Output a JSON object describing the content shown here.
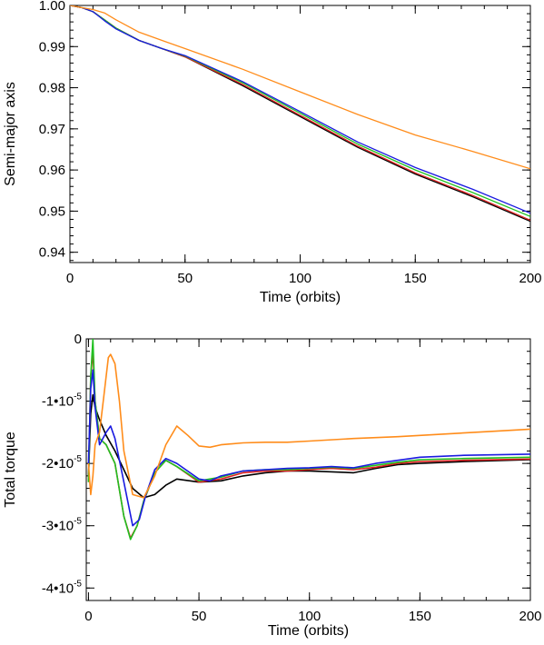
{
  "chart_data": [
    {
      "type": "line",
      "xlabel": "Time (orbits)",
      "ylabel": "Semi-major axis",
      "xlim": [
        0,
        200
      ],
      "ylim": [
        0.9375,
        1.0
      ],
      "x_ticks": [
        0,
        50,
        100,
        150,
        200
      ],
      "x_tick_labels": [
        "0",
        "50",
        "100",
        "150",
        "200"
      ],
      "y_ticks": [
        0.94,
        0.95,
        0.96,
        0.97,
        0.98,
        0.99,
        1.0
      ],
      "y_tick_labels": [
        "0.94",
        "0.95",
        "0.96",
        "0.97",
        "0.98",
        "0.99",
        "1.00"
      ],
      "grid": false,
      "series": [
        {
          "color": "#000000",
          "x": [
            0,
            5,
            10,
            15,
            20,
            30,
            40,
            50,
            75,
            100,
            125,
            150,
            175,
            200
          ],
          "y": [
            1.0,
            0.9995,
            0.9985,
            0.9965,
            0.9945,
            0.9915,
            0.9895,
            0.9875,
            0.9805,
            0.973,
            0.9655,
            0.959,
            0.9535,
            0.9475
          ]
        },
        {
          "color": "#e02020",
          "x": [
            0,
            5,
            10,
            15,
            20,
            30,
            40,
            50,
            75,
            100,
            125,
            150,
            175,
            200
          ],
          "y": [
            1.0,
            0.9995,
            0.9985,
            0.9965,
            0.9945,
            0.9915,
            0.9895,
            0.9875,
            0.9808,
            0.9733,
            0.9658,
            0.9593,
            0.9538,
            0.9478
          ]
        },
        {
          "color": "#20c020",
          "x": [
            0,
            5,
            10,
            15,
            20,
            30,
            40,
            50,
            75,
            100,
            125,
            150,
            175,
            200
          ],
          "y": [
            1.0,
            0.9995,
            0.9985,
            0.9965,
            0.9945,
            0.9915,
            0.9895,
            0.9877,
            0.9812,
            0.9738,
            0.9663,
            0.96,
            0.9545,
            0.9487
          ]
        },
        {
          "color": "#1a1ae0",
          "x": [
            0,
            5,
            10,
            15,
            20,
            30,
            40,
            50,
            75,
            100,
            125,
            150,
            175,
            200
          ],
          "y": [
            1.0,
            0.9995,
            0.9985,
            0.9963,
            0.9943,
            0.9915,
            0.9895,
            0.9878,
            0.9815,
            0.9742,
            0.9668,
            0.9606,
            0.9553,
            0.9495
          ]
        },
        {
          "color": "#ff8c1a",
          "x": [
            0,
            5,
            10,
            15,
            20,
            30,
            40,
            50,
            75,
            100,
            125,
            150,
            175,
            200
          ],
          "y": [
            1.0,
            0.9995,
            0.999,
            0.9982,
            0.9965,
            0.9935,
            0.9915,
            0.9895,
            0.9845,
            0.979,
            0.9735,
            0.9685,
            0.9645,
            0.9603
          ]
        }
      ]
    },
    {
      "type": "line",
      "xlabel": "Time (orbits)",
      "ylabel": "Total torque",
      "xlim": [
        -1,
        200
      ],
      "ylim": [
        -4.2e-05,
        0.0
      ],
      "x_ticks": [
        0,
        50,
        100,
        150,
        200
      ],
      "x_tick_labels": [
        "0",
        "50",
        "100",
        "150",
        "200"
      ],
      "y_ticks": [
        0.0,
        -1e-05,
        -2e-05,
        -3e-05,
        -4e-05
      ],
      "y_tick_labels": [
        {
          "mantissa": "0",
          "exponent": ""
        },
        {
          "mantissa": "-1•10",
          "exponent": "-5"
        },
        {
          "mantissa": "-2•10",
          "exponent": "-5"
        },
        {
          "mantissa": "-3•10",
          "exponent": "-5"
        },
        {
          "mantissa": "-4•10",
          "exponent": "-5"
        }
      ],
      "grid": false,
      "series": [
        {
          "color": "#000000",
          "x": [
            0,
            1,
            2,
            3,
            5,
            8,
            12,
            16,
            20,
            25,
            30,
            35,
            40,
            50,
            60,
            70,
            80,
            90,
            100,
            120,
            130,
            140,
            150,
            170,
            200
          ],
          "y": [
            -2.2e-05,
            -1.2e-05,
            -9e-06,
            -1.1e-05,
            -1.3e-05,
            -1.55e-05,
            -1.8e-05,
            -2.1e-05,
            -2.4e-05,
            -2.55e-05,
            -2.5e-05,
            -2.35e-05,
            -2.25e-05,
            -2.3e-05,
            -2.28e-05,
            -2.2e-05,
            -2.15e-05,
            -2.12e-05,
            -2.12e-05,
            -2.15e-05,
            -2.08e-05,
            -2.02e-05,
            -2e-05,
            -1.97e-05,
            -1.94e-05
          ]
        },
        {
          "color": "#e02020",
          "x": [
            0,
            1,
            2,
            3,
            5,
            8,
            12,
            16,
            19,
            22,
            25,
            30,
            35,
            40,
            50,
            60,
            70,
            80,
            90,
            100,
            110,
            120,
            130,
            140,
            150,
            170,
            200
          ],
          "y": [
            -2.3e-05,
            -6e-06,
            -2e-06,
            -1e-05,
            -1.6e-05,
            -1.7e-05,
            -2e-05,
            -2.85e-05,
            -3.2e-05,
            -3e-05,
            -2.6e-05,
            -2.15e-05,
            -1.95e-05,
            -2.05e-05,
            -2.3e-05,
            -2.25e-05,
            -2.15e-05,
            -2.12e-05,
            -2.12e-05,
            -2.1e-05,
            -2.08e-05,
            -2.1e-05,
            -2.06e-05,
            -2e-05,
            -1.97e-05,
            -1.95e-05,
            -1.93e-05
          ]
        },
        {
          "color": "#20c020",
          "x": [
            0,
            1,
            2,
            3,
            5,
            8,
            12,
            16,
            19,
            22,
            25,
            30,
            35,
            40,
            50,
            60,
            70,
            80,
            90,
            100,
            110,
            120,
            130,
            140,
            150,
            170,
            200
          ],
          "y": [
            -2.3e-05,
            -6e-06,
            0.0,
            -1e-05,
            -1.6e-05,
            -1.7e-05,
            -2e-05,
            -2.85e-05,
            -3.22e-05,
            -3e-05,
            -2.6e-05,
            -2.15e-05,
            -1.95e-05,
            -2.05e-05,
            -2.28e-05,
            -2.22e-05,
            -2.12e-05,
            -2.1e-05,
            -2.1e-05,
            -2.08e-05,
            -2.06e-05,
            -2.08e-05,
            -2.03e-05,
            -1.98e-05,
            -1.94e-05,
            -1.92e-05,
            -1.9e-05
          ]
        },
        {
          "color": "#1a1ae0",
          "x": [
            0,
            1,
            2,
            3,
            5,
            8,
            10,
            12,
            16,
            20,
            23,
            26,
            30,
            35,
            40,
            50,
            55,
            60,
            70,
            80,
            90,
            100,
            110,
            120,
            130,
            140,
            150,
            170,
            200
          ],
          "y": [
            -2e-05,
            -8e-06,
            -5e-06,
            -1.1e-05,
            -1.7e-05,
            -1.5e-05,
            -1.4e-05,
            -1.6e-05,
            -2.3e-05,
            -3e-05,
            -2.9e-05,
            -2.5e-05,
            -2.1e-05,
            -1.92e-05,
            -2e-05,
            -2.25e-05,
            -2.28e-05,
            -2.2e-05,
            -2.12e-05,
            -2.1e-05,
            -2.08e-05,
            -2.07e-05,
            -2.05e-05,
            -2.07e-05,
            -2e-05,
            -1.95e-05,
            -1.9e-05,
            -1.87e-05,
            -1.85e-05
          ]
        },
        {
          "color": "#ff8c1a",
          "x": [
            0,
            1,
            2,
            3,
            5,
            7,
            9,
            10,
            12,
            14,
            16,
            20,
            25,
            30,
            35,
            40,
            45,
            50,
            55,
            60,
            70,
            80,
            90,
            100,
            120,
            140,
            160,
            180,
            200
          ],
          "y": [
            -2e-05,
            -2.5e-05,
            -2.2e-05,
            -1.7e-05,
            -1.5e-05,
            -9e-06,
            -3e-06,
            -2.5e-06,
            -4e-06,
            -1e-05,
            -1.8e-05,
            -2.5e-05,
            -2.55e-05,
            -2.2e-05,
            -1.7e-05,
            -1.4e-05,
            -1.55e-05,
            -1.72e-05,
            -1.74e-05,
            -1.7e-05,
            -1.67e-05,
            -1.66e-05,
            -1.66e-05,
            -1.64e-05,
            -1.6e-05,
            -1.57e-05,
            -1.53e-05,
            -1.49e-05,
            -1.45e-05
          ]
        }
      ]
    }
  ]
}
